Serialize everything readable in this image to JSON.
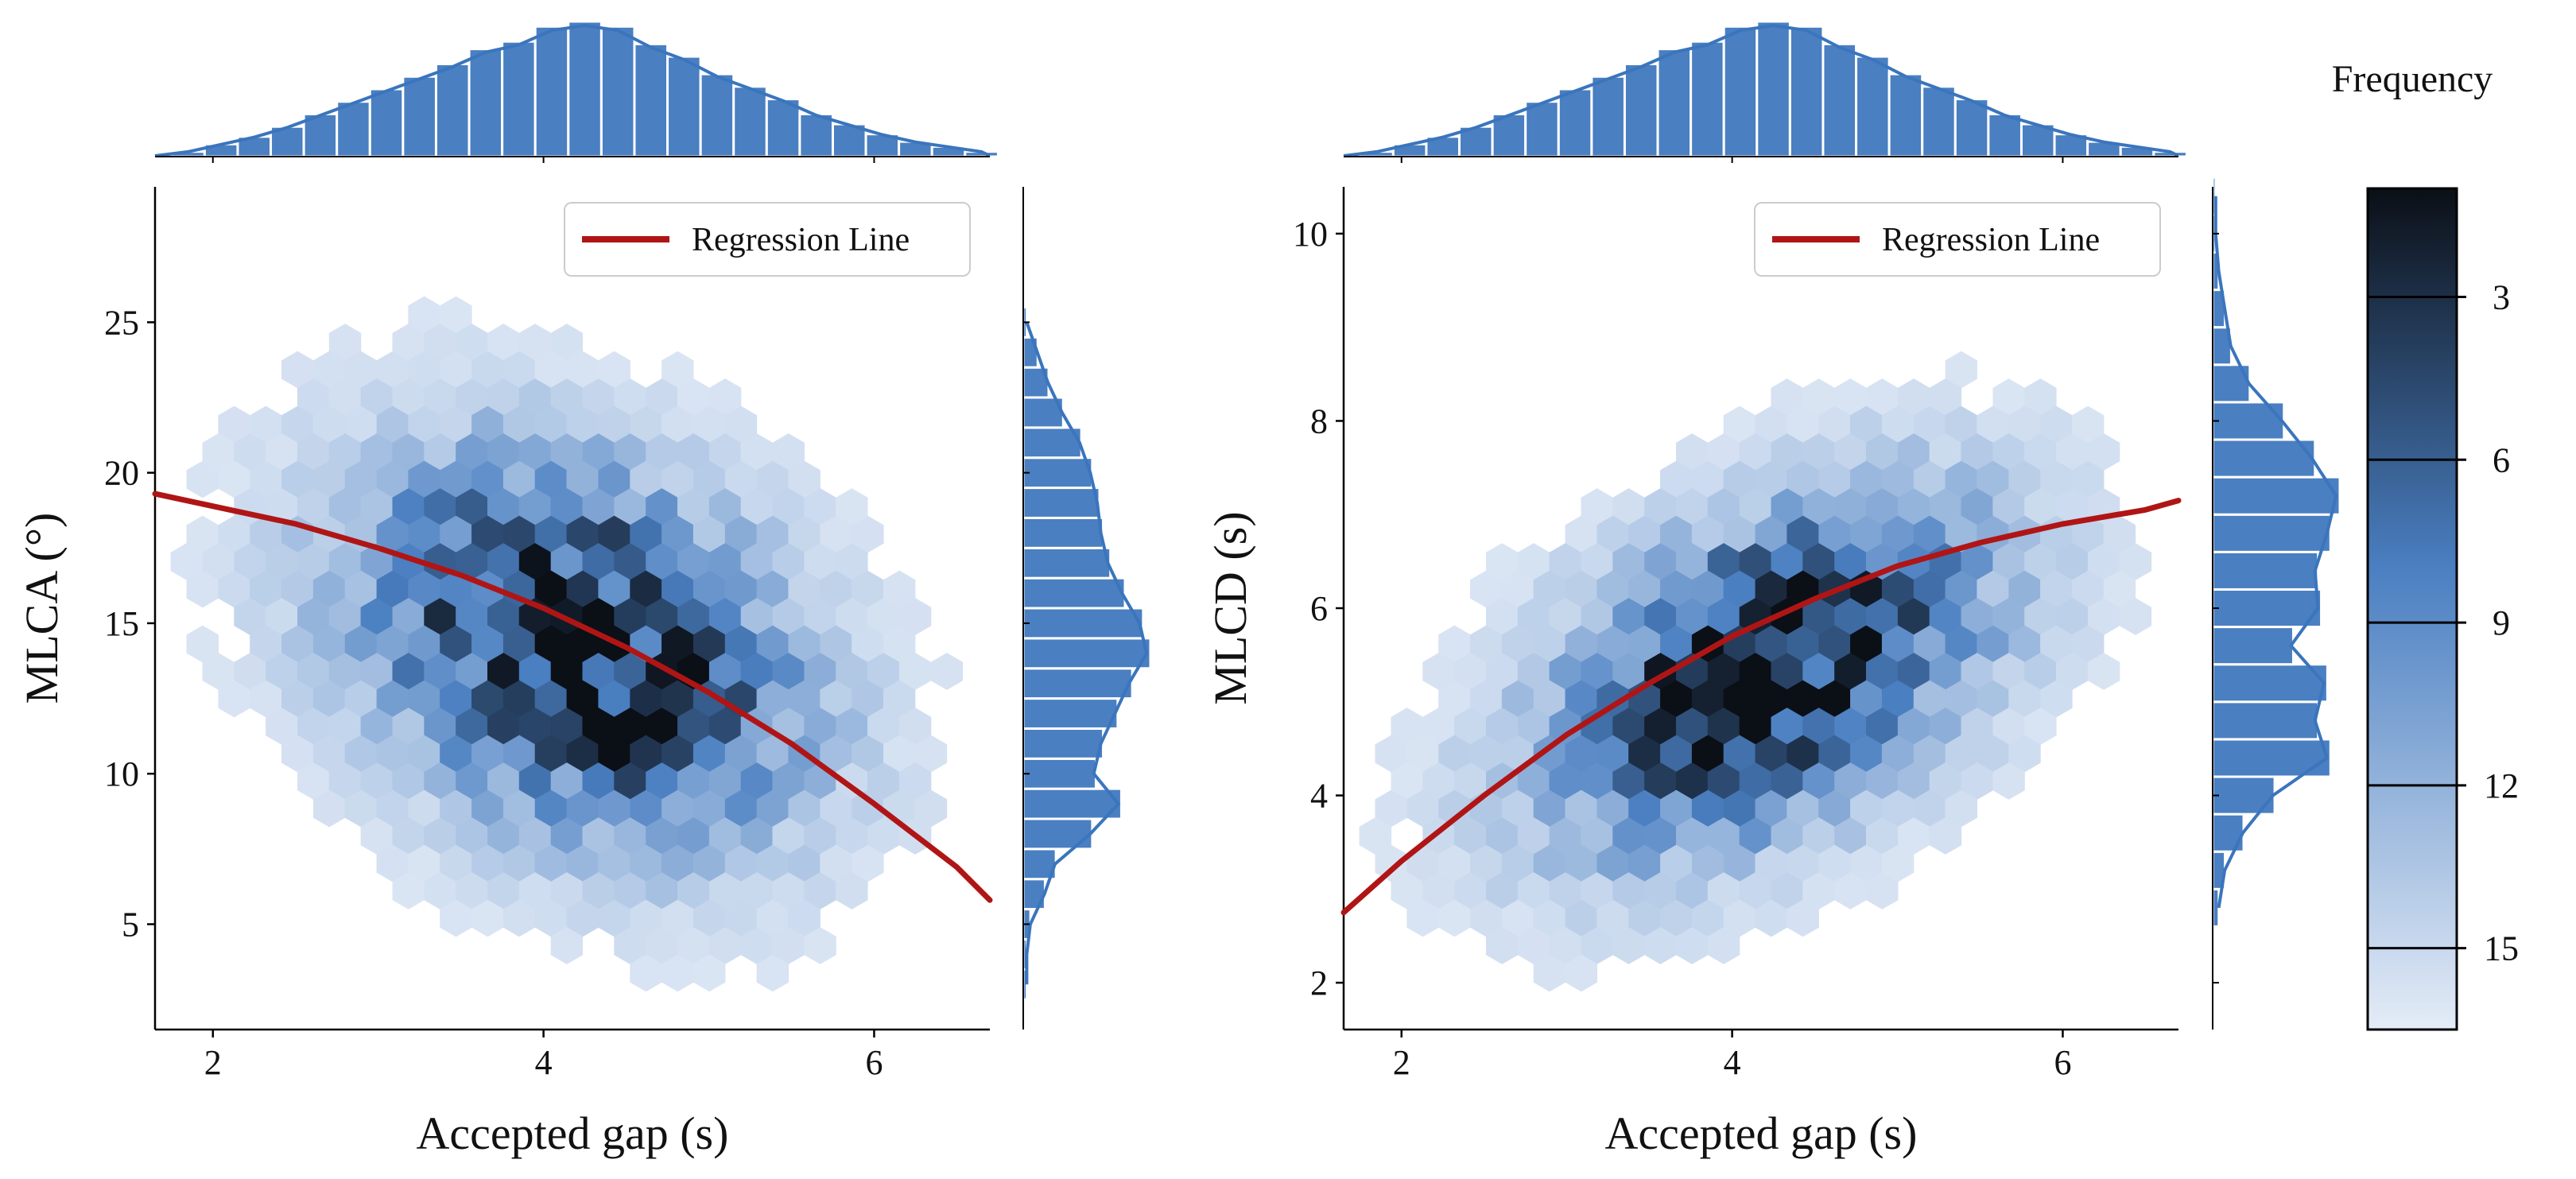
{
  "colors": {
    "hex_light": "#e4ecf7",
    "hex_mid": "#4a7fc1",
    "hex_dark": "#0b0f16",
    "marginal_bar": "#4a7fc1",
    "kde_line": "#3a75bd",
    "regression": "#b01515",
    "axis": "#000000"
  },
  "colorbar": {
    "title": "Frequency",
    "range": [
      1,
      16.5
    ],
    "ticks": [
      3,
      6,
      9,
      12,
      15
    ],
    "tick_labels": [
      "3",
      "6",
      "9",
      "12",
      "15"
    ]
  },
  "chart_data": [
    {
      "type": "hexbin",
      "xlabel": "Accepted gap (s)",
      "ylabel": "MLCA (°)",
      "xlim": [
        1.65,
        6.7
      ],
      "ylim": [
        1.5,
        29.5
      ],
      "xticks": [
        2,
        4,
        6
      ],
      "xtick_labels": [
        "2",
        "4",
        "6"
      ],
      "yticks": [
        5,
        10,
        15,
        20,
        25
      ],
      "ytick_labels": [
        "5",
        "10",
        "15",
        "20",
        "25"
      ],
      "legend": {
        "label": "Regression Line",
        "placement": "upper right"
      },
      "regression_curve": {
        "x": [
          1.65,
          2.5,
          3.0,
          3.5,
          4.0,
          4.5,
          5.0,
          5.5,
          6.0,
          6.5,
          6.7
        ],
        "y": [
          19.3,
          18.3,
          17.5,
          16.6,
          15.5,
          14.2,
          12.7,
          11.0,
          9.0,
          6.9,
          5.8
        ]
      },
      "density": {
        "center": [
          4.2,
          14.2
        ],
        "sigma": [
          0.9,
          4.2
        ],
        "corr": -0.3,
        "peak": 16
      },
      "marginal_x": {
        "bin_start": 1.75,
        "bin_width": 0.2,
        "counts": [
          2,
          5,
          8,
          12,
          17,
          22,
          27,
          32,
          37,
          43,
          46,
          52,
          54,
          52,
          45,
          40,
          33,
          28,
          23,
          17,
          13,
          9,
          6,
          4,
          2
        ]
      },
      "marginal_y": {
        "bin_start": 2.5,
        "bin_width": 1.0,
        "counts": [
          1,
          1,
          2,
          6,
          9,
          19,
          27,
          20,
          22,
          26,
          30,
          35,
          33,
          28,
          24,
          22,
          21,
          19,
          16,
          11,
          7,
          4,
          1
        ]
      }
    },
    {
      "type": "hexbin",
      "xlabel": "Accepted gap (s)",
      "ylabel": "MLCD (s)",
      "xlim": [
        1.65,
        6.7
      ],
      "ylim": [
        1.5,
        10.5
      ],
      "xticks": [
        2,
        4,
        6
      ],
      "xtick_labels": [
        "2",
        "4",
        "6"
      ],
      "yticks": [
        2,
        4,
        6,
        8,
        10
      ],
      "ytick_labels": [
        "2",
        "4",
        "6",
        "8",
        "10"
      ],
      "legend": {
        "label": "Regression Line",
        "placement": "upper right"
      },
      "regression_curve": {
        "x": [
          1.65,
          2.0,
          2.5,
          3.0,
          3.5,
          4.0,
          4.5,
          5.0,
          5.5,
          6.0,
          6.5,
          6.7
        ],
        "y": [
          2.75,
          3.3,
          4.0,
          4.65,
          5.2,
          5.7,
          6.1,
          6.45,
          6.7,
          6.9,
          7.05,
          7.15
        ]
      },
      "density": {
        "center": [
          4.2,
          5.3
        ],
        "sigma": [
          0.9,
          1.25
        ],
        "corr": 0.45,
        "peak": 16
      },
      "marginal_x": {
        "bin_start": 1.75,
        "bin_width": 0.2,
        "counts": [
          2,
          5,
          8,
          12,
          17,
          22,
          27,
          32,
          37,
          43,
          46,
          52,
          54,
          52,
          45,
          40,
          33,
          28,
          23,
          17,
          13,
          9,
          6,
          4,
          2
        ]
      },
      "marginal_y": {
        "bin_start": 2.6,
        "bin_width": 0.4,
        "counts": [
          2,
          4,
          10,
          20,
          38,
          34,
          37,
          26,
          35,
          34,
          38,
          41,
          33,
          23,
          12,
          6,
          4,
          2,
          1,
          1
        ]
      }
    }
  ]
}
